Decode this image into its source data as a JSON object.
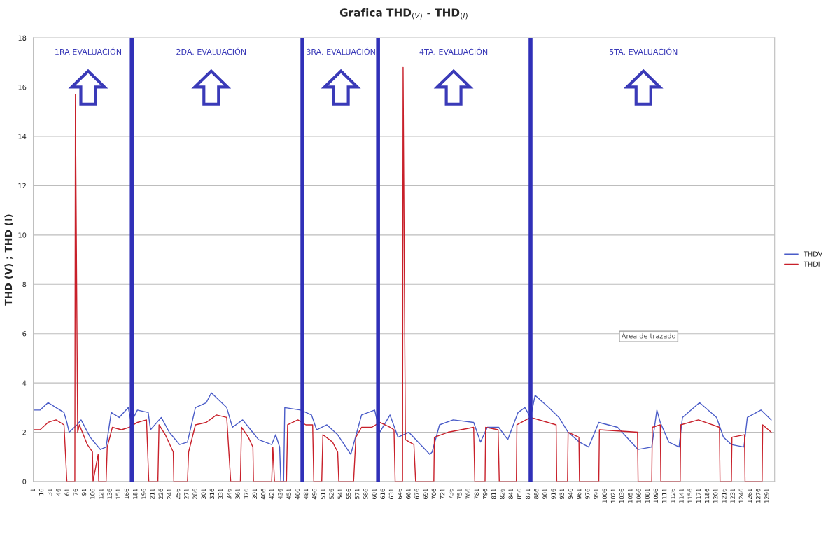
{
  "chart_data": {
    "type": "line",
    "title": "Grafica THD$_{(V)}$ - THD$_{(I)}$",
    "ylabel": "THD (V) ; THD (I)",
    "annotations": [
      "1RA EVALUACIÓN",
      "2DA. EVALUACIÓN",
      "3RA. EVALUACIÓN",
      "4TA. EVALUACIÓN",
      "5TA. EVALUACIÓN",
      "Área de trazado"
    ],
    "series": [
      {
        "name": "THDV",
        "color": "#4a5cc8",
        "x": [
          1,
          13,
          27,
          41,
          55,
          60,
          64,
          78,
          85,
          101,
          119,
          129,
          138,
          152,
          168,
          173,
          184,
          203,
          207,
          226,
          240,
          258,
          272,
          286,
          305,
          314,
          332,
          341,
          351,
          369,
          383,
          397,
          420,
          427,
          434,
          436,
          441,
          443,
          471,
          490,
          499,
          517,
          536,
          559,
          578,
          601,
          610,
          628,
          642,
          661,
          698,
          702,
          715,
          739,
          775,
          787,
          799,
          819,
          835,
          853,
          865,
          875,
          883,
          907,
          925,
          941,
          961,
          977,
          995,
          1028,
          1064,
          1088,
          1097,
          1103,
          1118,
          1136,
          1142,
          1172,
          1202,
          1214,
          1228,
          1250,
          1256,
          1280,
          1298
        ],
        "values": [
          2.9,
          2.9,
          3.2,
          3.0,
          2.8,
          2.4,
          2.0,
          2.3,
          2.5,
          1.8,
          1.3,
          1.4,
          2.8,
          2.6,
          3.0,
          2.4,
          2.9,
          2.8,
          2.1,
          2.6,
          2.0,
          1.5,
          1.6,
          3.0,
          3.2,
          3.6,
          3.2,
          3.0,
          2.2,
          2.5,
          2.1,
          1.7,
          1.5,
          1.9,
          1.4,
          0,
          0,
          3.0,
          2.9,
          2.7,
          2.1,
          2.3,
          1.9,
          1.1,
          2.7,
          2.9,
          2.0,
          2.7,
          1.8,
          2.0,
          1.1,
          1.2,
          2.3,
          2.5,
          2.4,
          1.6,
          2.2,
          2.2,
          1.7,
          2.8,
          3.0,
          2.6,
          3.5,
          3.0,
          2.6,
          2.0,
          1.6,
          1.4,
          2.4,
          2.2,
          1.3,
          1.4,
          2.9,
          2.4,
          1.6,
          1.4,
          2.6,
          3.2,
          2.6,
          1.8,
          1.5,
          1.4,
          2.6,
          2.9,
          2.5
        ]
      },
      {
        "name": "THDI",
        "color": "#c8202a",
        "x": [
          1,
          13,
          27,
          41,
          55,
          60,
          74,
          75,
          79,
          82,
          96,
          105,
          106,
          115,
          116,
          129,
          131,
          140,
          156,
          170,
          184,
          200,
          204,
          220,
          222,
          233,
          247,
          248,
          272,
          274,
          286,
          305,
          323,
          341,
          348,
          365,
          367,
          379,
          387,
          388,
          420,
          422,
          425,
          446,
          448,
          466,
          480,
          492,
          494,
          508,
          510,
          527,
          536,
          538,
          564,
          568,
          578,
          596,
          610,
          628,
          635,
          637,
          650,
          651,
          655,
          670,
          673,
          705,
          706,
          730,
          775,
          777,
          795,
          796,
          818,
          820,
          850,
          851,
          875,
          920,
          921,
          940,
          941,
          960,
          961,
          995,
          996,
          1063,
          1064,
          1088,
          1089,
          1103,
          1104,
          1138,
          1139,
          1170,
          1207,
          1208,
          1228,
          1229,
          1251,
          1252,
          1282,
          1283,
          1298
        ],
        "values": [
          2.1,
          2.1,
          2.4,
          2.5,
          2.3,
          0,
          0,
          15.7,
          2.0,
          2.3,
          1.5,
          1.2,
          0,
          1.1,
          0,
          0,
          1.4,
          2.2,
          2.1,
          2.2,
          2.4,
          2.5,
          0,
          0,
          2.3,
          1.9,
          1.2,
          0,
          0,
          1.2,
          2.3,
          2.4,
          2.7,
          2.6,
          0,
          0,
          2.2,
          1.8,
          1.4,
          0,
          0,
          1.4,
          0,
          0,
          2.3,
          2.5,
          2.3,
          2.3,
          0,
          0,
          1.9,
          1.6,
          1.2,
          0,
          0,
          1.8,
          2.2,
          2.2,
          2.4,
          2.2,
          2.1,
          0,
          0,
          16.8,
          1.7,
          1.5,
          0,
          0,
          1.8,
          2.0,
          2.2,
          0,
          0,
          2.2,
          2.1,
          0,
          0,
          2.3,
          2.6,
          2.3,
          0,
          0,
          2.0,
          1.8,
          0,
          0,
          2.1,
          2.0,
          0,
          0,
          2.2,
          2.3,
          0,
          0,
          2.3,
          2.5,
          2.2,
          0,
          0,
          1.8,
          1.9,
          0,
          0,
          2.3,
          2.0
        ]
      }
    ],
    "ref_lines": [
      {
        "axis": "x",
        "value": 174,
        "color": "#3030b8"
      },
      {
        "axis": "x",
        "value": 474,
        "color": "#3030b8"
      },
      {
        "axis": "x",
        "value": 607,
        "color": "#3030b8"
      },
      {
        "axis": "x",
        "value": 875,
        "color": "#3030b8"
      }
    ],
    "xlim": [
      1,
      1304
    ],
    "ylim": [
      0,
      18
    ],
    "xticks": [
      1,
      16,
      31,
      46,
      61,
      76,
      91,
      106,
      121,
      136,
      151,
      166,
      181,
      196,
      211,
      226,
      241,
      256,
      271,
      286,
      301,
      316,
      331,
      346,
      361,
      376,
      391,
      406,
      421,
      436,
      451,
      466,
      481,
      496,
      511,
      526,
      541,
      556,
      571,
      586,
      601,
      616,
      631,
      646,
      661,
      676,
      691,
      706,
      721,
      736,
      751,
      766,
      781,
      796,
      811,
      826,
      841,
      856,
      871,
      886,
      901,
      916,
      931,
      946,
      961,
      976,
      991,
      1006,
      1021,
      1036,
      1051,
      1066,
      1081,
      1096,
      1111,
      1126,
      1141,
      1156,
      1171,
      1186,
      1201,
      1216,
      1231,
      1246,
      1261,
      1276,
      1291
    ],
    "yticks": [
      0,
      2,
      4,
      6,
      8,
      10,
      12,
      14,
      16,
      18
    ],
    "grid": "y",
    "legend": "right",
    "line_style": "solid",
    "marker": "none"
  }
}
